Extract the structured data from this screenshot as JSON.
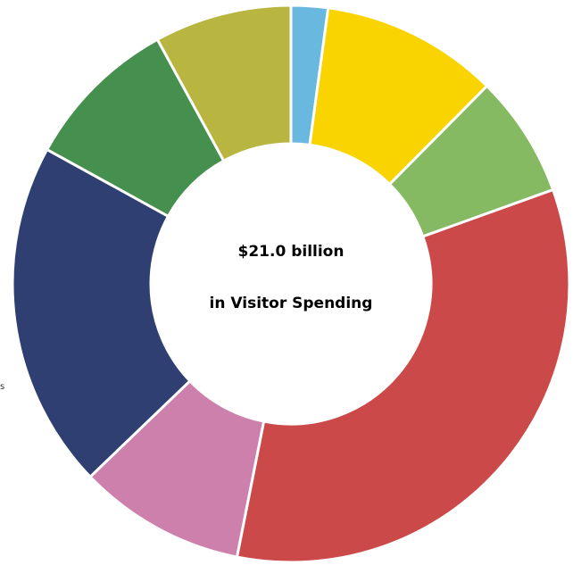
{
  "chart_data": {
    "type": "pie",
    "center_label": {
      "line1": "$21.0 billion",
      "line2": "in Visitor Spending"
    },
    "slices": [
      {
        "value": 2.2,
        "color": "#69b8e0"
      },
      {
        "value": 10.6,
        "color": "#fad400"
      },
      {
        "value": 7.3,
        "color": "#85b962"
      },
      {
        "value": 34.6,
        "color": "#cc4949"
      },
      {
        "value": 10.0,
        "color": "#cc80ab"
      },
      {
        "value": 20.8,
        "color": "#2f3f72"
      },
      {
        "value": 9.3,
        "color": "#45904f"
      },
      {
        "value": 8.2,
        "color": "#b8b640"
      }
    ]
  },
  "edge_text": "s"
}
